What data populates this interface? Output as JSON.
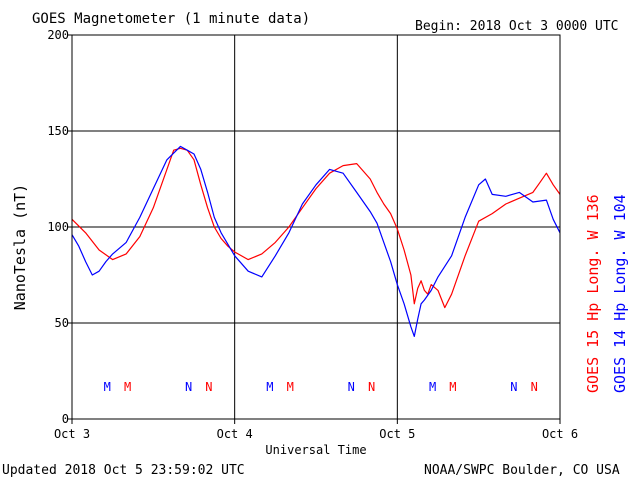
{
  "chart_data": {
    "type": "line",
    "title": "GOES Magnetometer (1 minute data)",
    "begin_label": "Begin:  2018 Oct 3 0000 UTC",
    "xlabel": "Universal Time",
    "ylabel": "NanoTesla (nT)",
    "x_ticks": [
      "Oct 3",
      "Oct 4",
      "Oct 5",
      "Oct 6"
    ],
    "xlim_hours": [
      0,
      72
    ],
    "y_ticks": [
      "0",
      "50",
      "100",
      "150",
      "200"
    ],
    "ylim": [
      0,
      200
    ],
    "grid": true,
    "series": [
      {
        "name": "GOES 15 Hp  Long. W 136",
        "color": "#ff0000",
        "x": [
          0,
          2,
          4,
          6,
          8,
          10,
          12,
          14,
          15,
          16,
          17,
          18,
          19,
          20,
          21,
          22,
          23,
          24,
          26,
          28,
          30,
          32,
          34,
          36,
          38,
          40,
          42,
          44,
          45,
          46,
          47,
          48,
          49,
          50,
          50.5,
          51,
          51.5,
          52,
          52.5,
          53,
          54,
          55,
          56,
          58,
          60,
          62,
          64,
          66,
          68,
          69,
          70,
          71,
          72
        ],
        "values": [
          104,
          97,
          88,
          83,
          86,
          95,
          110,
          130,
          140,
          141,
          140,
          135,
          122,
          110,
          100,
          94,
          90,
          87,
          83,
          86,
          92,
          100,
          110,
          120,
          128,
          132,
          133,
          125,
          118,
          112,
          107,
          99,
          88,
          75,
          60,
          68,
          72,
          67,
          65,
          70,
          67,
          58,
          65,
          85,
          103,
          107,
          112,
          115,
          118,
          123,
          128,
          122,
          117
        ]
      },
      {
        "name": "GOES 14 Hp  Long. W 104",
        "color": "#0000ff",
        "x": [
          0,
          1,
          2,
          3,
          4,
          5,
          6,
          8,
          10,
          12,
          14,
          16,
          17,
          18,
          19,
          20,
          21,
          22,
          24,
          26,
          28,
          30,
          32,
          34,
          36,
          38,
          40,
          42,
          44,
          45,
          46,
          47,
          48,
          49,
          50,
          50.5,
          51,
          51.5,
          52,
          53,
          54,
          56,
          58,
          60,
          61,
          62,
          64,
          66,
          68,
          70,
          71,
          72
        ],
        "values": [
          96,
          90,
          82,
          75,
          77,
          82,
          86,
          92,
          105,
          120,
          135,
          142,
          140,
          138,
          130,
          118,
          105,
          97,
          85,
          77,
          74,
          85,
          97,
          112,
          122,
          130,
          128,
          118,
          108,
          102,
          92,
          82,
          70,
          60,
          48,
          43,
          52,
          60,
          62,
          67,
          74,
          85,
          105,
          122,
          125,
          117,
          116,
          118,
          113,
          114,
          104,
          97
        ]
      }
    ],
    "markers": [
      {
        "label": "M",
        "x_hours": 5.2,
        "color": "#0000ff"
      },
      {
        "label": "M",
        "x_hours": 8.2,
        "color": "#ff0000"
      },
      {
        "label": "N",
        "x_hours": 17.2,
        "color": "#0000ff"
      },
      {
        "label": "N",
        "x_hours": 20.2,
        "color": "#ff0000"
      },
      {
        "label": "M",
        "x_hours": 29.2,
        "color": "#0000ff"
      },
      {
        "label": "M",
        "x_hours": 32.2,
        "color": "#ff0000"
      },
      {
        "label": "N",
        "x_hours": 41.2,
        "color": "#0000ff"
      },
      {
        "label": "N",
        "x_hours": 44.2,
        "color": "#ff0000"
      },
      {
        "label": "M",
        "x_hours": 53.2,
        "color": "#0000ff"
      },
      {
        "label": "M",
        "x_hours": 56.2,
        "color": "#ff0000"
      },
      {
        "label": "N",
        "x_hours": 65.2,
        "color": "#0000ff"
      },
      {
        "label": "N",
        "x_hours": 68.2,
        "color": "#ff0000"
      }
    ]
  },
  "footer": {
    "updated": "Updated 2018 Oct  5 23:59:02 UTC",
    "source": "NOAA/SWPC Boulder, CO USA"
  }
}
